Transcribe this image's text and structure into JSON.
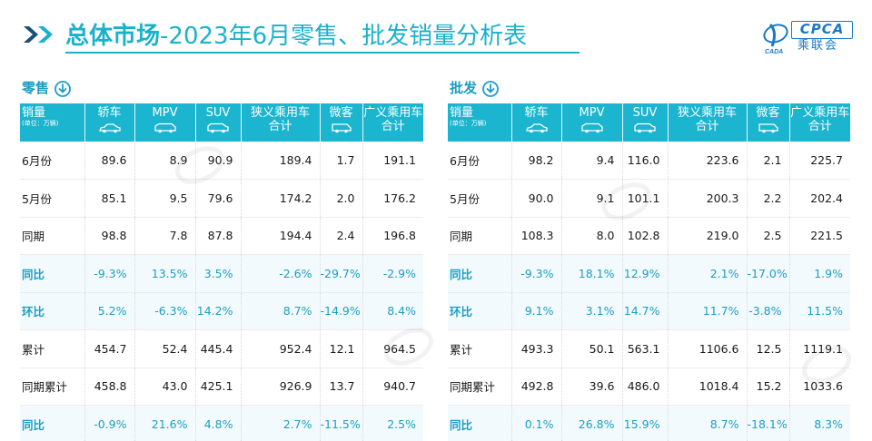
{
  "header": {
    "title_bold": "总体市场",
    "title_rest": "-2023年6月零售、批发销量分析表",
    "logo_text": "CPCA",
    "logo_cn": "乘联会",
    "logo_small": "CADA"
  },
  "columns": {
    "first": "销量",
    "first_unit": "(单位：万辆)",
    "sedan": "轿车",
    "mpv": "MPV",
    "suv": "SUV",
    "narrow_line1": "狭义乘用车",
    "narrow_line2": "合计",
    "mini": "微客",
    "broad_line1": "广义乘用车",
    "broad_line2": "合计"
  },
  "retail": {
    "title": "零售",
    "rows": [
      {
        "label": "6月份",
        "sedan": "89.6",
        "mpv": "8.9",
        "suv": "90.9",
        "narrow": "189.4",
        "mini": "1.7",
        "broad": "191.1"
      },
      {
        "label": "5月份",
        "sedan": "85.1",
        "mpv": "9.5",
        "suv": "79.6",
        "narrow": "174.2",
        "mini": "2.0",
        "broad": "176.2"
      },
      {
        "label": "同期",
        "sedan": "98.8",
        "mpv": "7.8",
        "suv": "87.8",
        "narrow": "194.4",
        "mini": "2.4",
        "broad": "196.8"
      },
      {
        "label": "同比",
        "sedan": "-9.3%",
        "mpv": "13.5%",
        "suv": "3.5%",
        "narrow": "-2.6%",
        "mini": "-29.7%",
        "broad": "-2.9%"
      },
      {
        "label": "环比",
        "sedan": "5.2%",
        "mpv": "-6.3%",
        "suv": "14.2%",
        "narrow": "8.7%",
        "mini": "-14.9%",
        "broad": "8.4%"
      },
      {
        "label": "累计",
        "sedan": "454.7",
        "mpv": "52.4",
        "suv": "445.4",
        "narrow": "952.4",
        "mini": "12.1",
        "broad": "964.5"
      },
      {
        "label": "同期累计",
        "sedan": "458.8",
        "mpv": "43.0",
        "suv": "425.1",
        "narrow": "926.9",
        "mini": "13.7",
        "broad": "940.7"
      },
      {
        "label": "同比",
        "sedan": "-0.9%",
        "mpv": "21.6%",
        "suv": "4.8%",
        "narrow": "2.7%",
        "mini": "-11.5%",
        "broad": "2.5%"
      }
    ]
  },
  "wholesale": {
    "title": "批发",
    "rows": [
      {
        "label": "6月份",
        "sedan": "98.2",
        "mpv": "9.4",
        "suv": "116.0",
        "narrow": "223.6",
        "mini": "2.1",
        "broad": "225.7"
      },
      {
        "label": "5月份",
        "sedan": "90.0",
        "mpv": "9.1",
        "suv": "101.1",
        "narrow": "200.3",
        "mini": "2.2",
        "broad": "202.4"
      },
      {
        "label": "同期",
        "sedan": "108.3",
        "mpv": "8.0",
        "suv": "102.8",
        "narrow": "219.0",
        "mini": "2.5",
        "broad": "221.5"
      },
      {
        "label": "同比",
        "sedan": "-9.3%",
        "mpv": "18.1%",
        "suv": "12.9%",
        "narrow": "2.1%",
        "mini": "-17.0%",
        "broad": "1.9%"
      },
      {
        "label": "环比",
        "sedan": "9.1%",
        "mpv": "3.1%",
        "suv": "14.7%",
        "narrow": "11.7%",
        "mini": "-3.8%",
        "broad": "11.5%"
      },
      {
        "label": "累计",
        "sedan": "493.3",
        "mpv": "50.1",
        "suv": "563.1",
        "narrow": "1106.6",
        "mini": "12.5",
        "broad": "1119.1"
      },
      {
        "label": "同期累计",
        "sedan": "492.8",
        "mpv": "39.6",
        "suv": "486.0",
        "narrow": "1018.4",
        "mini": "15.2",
        "broad": "1033.6"
      },
      {
        "label": "同比",
        "sedan": "0.1%",
        "mpv": "26.8%",
        "suv": "15.9%",
        "narrow": "8.7%",
        "mini": "-18.1%",
        "broad": "8.3%"
      }
    ]
  },
  "colors": {
    "accent": "#1bb1cc",
    "header_bg": "#1bb5cf",
    "logo_blue": "#1b78c7"
  },
  "icons": {
    "title_chevron": "double-chevron-right-icon",
    "panel": "circle-arrow-down-icon",
    "logo": "cpca-logo-icon"
  }
}
